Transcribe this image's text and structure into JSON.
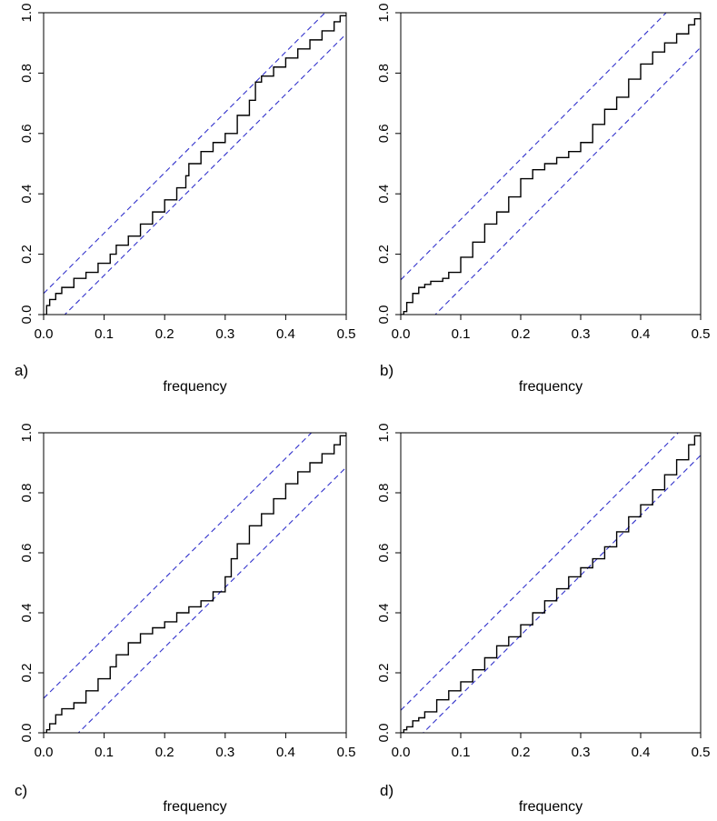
{
  "panels": [
    {
      "label": "a)",
      "chart_data": {
        "type": "line",
        "xlabel": "frequency",
        "ylabel": "",
        "xlim": [
          0,
          0.5
        ],
        "ylim": [
          0,
          1
        ],
        "x_ticks": [
          "0.0",
          "0.1",
          "0.2",
          "0.3",
          "0.4",
          "0.5"
        ],
        "y_ticks": [
          "0.0",
          "0.2",
          "0.4",
          "0.6",
          "0.8",
          "1.0"
        ],
        "grid": false,
        "series": [
          {
            "style": "step",
            "color": "#000000",
            "x": [
              0.0,
              0.005,
              0.01,
              0.02,
              0.03,
              0.05,
              0.07,
              0.09,
              0.11,
              0.12,
              0.14,
              0.16,
              0.18,
              0.2,
              0.22,
              0.235,
              0.24,
              0.26,
              0.28,
              0.3,
              0.32,
              0.34,
              0.35,
              0.36,
              0.38,
              0.4,
              0.42,
              0.44,
              0.46,
              0.48,
              0.49,
              0.5
            ],
            "y": [
              0.0,
              0.03,
              0.05,
              0.07,
              0.09,
              0.12,
              0.14,
              0.17,
              0.2,
              0.23,
              0.26,
              0.3,
              0.34,
              0.38,
              0.42,
              0.46,
              0.5,
              0.54,
              0.57,
              0.6,
              0.66,
              0.71,
              0.77,
              0.79,
              0.82,
              0.85,
              0.88,
              0.91,
              0.94,
              0.97,
              0.99,
              1.0
            ]
          }
        ],
        "bands": {
          "color": "#3333cc",
          "intercepts": [
            0.07,
            -0.07
          ]
        }
      }
    },
    {
      "label": "b)",
      "chart_data": {
        "type": "line",
        "xlabel": "frequency",
        "ylabel": "",
        "xlim": [
          0,
          0.5
        ],
        "ylim": [
          0,
          1
        ],
        "x_ticks": [
          "0.0",
          "0.1",
          "0.2",
          "0.3",
          "0.4",
          "0.5"
        ],
        "y_ticks": [
          "0.0",
          "0.2",
          "0.4",
          "0.6",
          "0.8",
          "1.0"
        ],
        "grid": false,
        "series": [
          {
            "style": "step",
            "color": "#000000",
            "x": [
              0.0,
              0.005,
              0.01,
              0.02,
              0.03,
              0.04,
              0.05,
              0.07,
              0.08,
              0.1,
              0.12,
              0.14,
              0.16,
              0.18,
              0.2,
              0.22,
              0.24,
              0.26,
              0.28,
              0.3,
              0.32,
              0.34,
              0.36,
              0.38,
              0.4,
              0.42,
              0.44,
              0.46,
              0.48,
              0.49,
              0.5
            ],
            "y": [
              0.0,
              0.01,
              0.04,
              0.07,
              0.09,
              0.1,
              0.11,
              0.12,
              0.14,
              0.19,
              0.24,
              0.3,
              0.34,
              0.39,
              0.45,
              0.48,
              0.5,
              0.52,
              0.54,
              0.57,
              0.63,
              0.68,
              0.72,
              0.78,
              0.83,
              0.87,
              0.9,
              0.93,
              0.96,
              0.98,
              1.0
            ]
          }
        ],
        "bands": {
          "color": "#3333cc",
          "intercepts": [
            0.115,
            -0.115
          ]
        }
      }
    },
    {
      "label": "c)",
      "chart_data": {
        "type": "line",
        "xlabel": "frequency",
        "ylabel": "",
        "xlim": [
          0,
          0.5
        ],
        "ylim": [
          0,
          1
        ],
        "x_ticks": [
          "0.0",
          "0.1",
          "0.2",
          "0.3",
          "0.4",
          "0.5"
        ],
        "y_ticks": [
          "0.0",
          "0.2",
          "0.4",
          "0.6",
          "0.8",
          "1.0"
        ],
        "grid": false,
        "series": [
          {
            "style": "step",
            "color": "#000000",
            "x": [
              0.0,
              0.005,
              0.01,
              0.02,
              0.03,
              0.05,
              0.07,
              0.09,
              0.11,
              0.12,
              0.14,
              0.16,
              0.18,
              0.2,
              0.22,
              0.24,
              0.26,
              0.28,
              0.3,
              0.31,
              0.32,
              0.34,
              0.36,
              0.38,
              0.4,
              0.42,
              0.44,
              0.46,
              0.48,
              0.49,
              0.5
            ],
            "y": [
              0.0,
              0.01,
              0.03,
              0.06,
              0.08,
              0.1,
              0.14,
              0.18,
              0.22,
              0.26,
              0.3,
              0.33,
              0.35,
              0.37,
              0.4,
              0.42,
              0.44,
              0.47,
              0.52,
              0.58,
              0.63,
              0.69,
              0.73,
              0.78,
              0.83,
              0.87,
              0.9,
              0.93,
              0.96,
              0.99,
              1.0
            ]
          }
        ],
        "bands": {
          "color": "#3333cc",
          "intercepts": [
            0.115,
            -0.115
          ]
        }
      }
    },
    {
      "label": "d)",
      "chart_data": {
        "type": "line",
        "xlabel": "frequency",
        "ylabel": "",
        "xlim": [
          0,
          0.5
        ],
        "ylim": [
          0,
          1
        ],
        "x_ticks": [
          "0.0",
          "0.1",
          "0.2",
          "0.3",
          "0.4",
          "0.5"
        ],
        "y_ticks": [
          "0.0",
          "0.2",
          "0.4",
          "0.6",
          "0.8",
          "1.0"
        ],
        "grid": false,
        "series": [
          {
            "style": "step",
            "color": "#000000",
            "x": [
              0.0,
              0.005,
              0.01,
              0.02,
              0.03,
              0.04,
              0.06,
              0.08,
              0.1,
              0.12,
              0.14,
              0.16,
              0.18,
              0.2,
              0.22,
              0.24,
              0.26,
              0.28,
              0.3,
              0.32,
              0.34,
              0.36,
              0.38,
              0.4,
              0.42,
              0.44,
              0.46,
              0.48,
              0.49,
              0.5
            ],
            "y": [
              0.0,
              0.01,
              0.02,
              0.04,
              0.05,
              0.07,
              0.11,
              0.14,
              0.17,
              0.21,
              0.25,
              0.29,
              0.32,
              0.36,
              0.4,
              0.44,
              0.48,
              0.52,
              0.55,
              0.58,
              0.62,
              0.67,
              0.72,
              0.76,
              0.81,
              0.86,
              0.91,
              0.96,
              0.99,
              1.0
            ]
          }
        ],
        "bands": {
          "color": "#3333cc",
          "intercepts": [
            0.075,
            -0.075
          ]
        }
      }
    }
  ]
}
